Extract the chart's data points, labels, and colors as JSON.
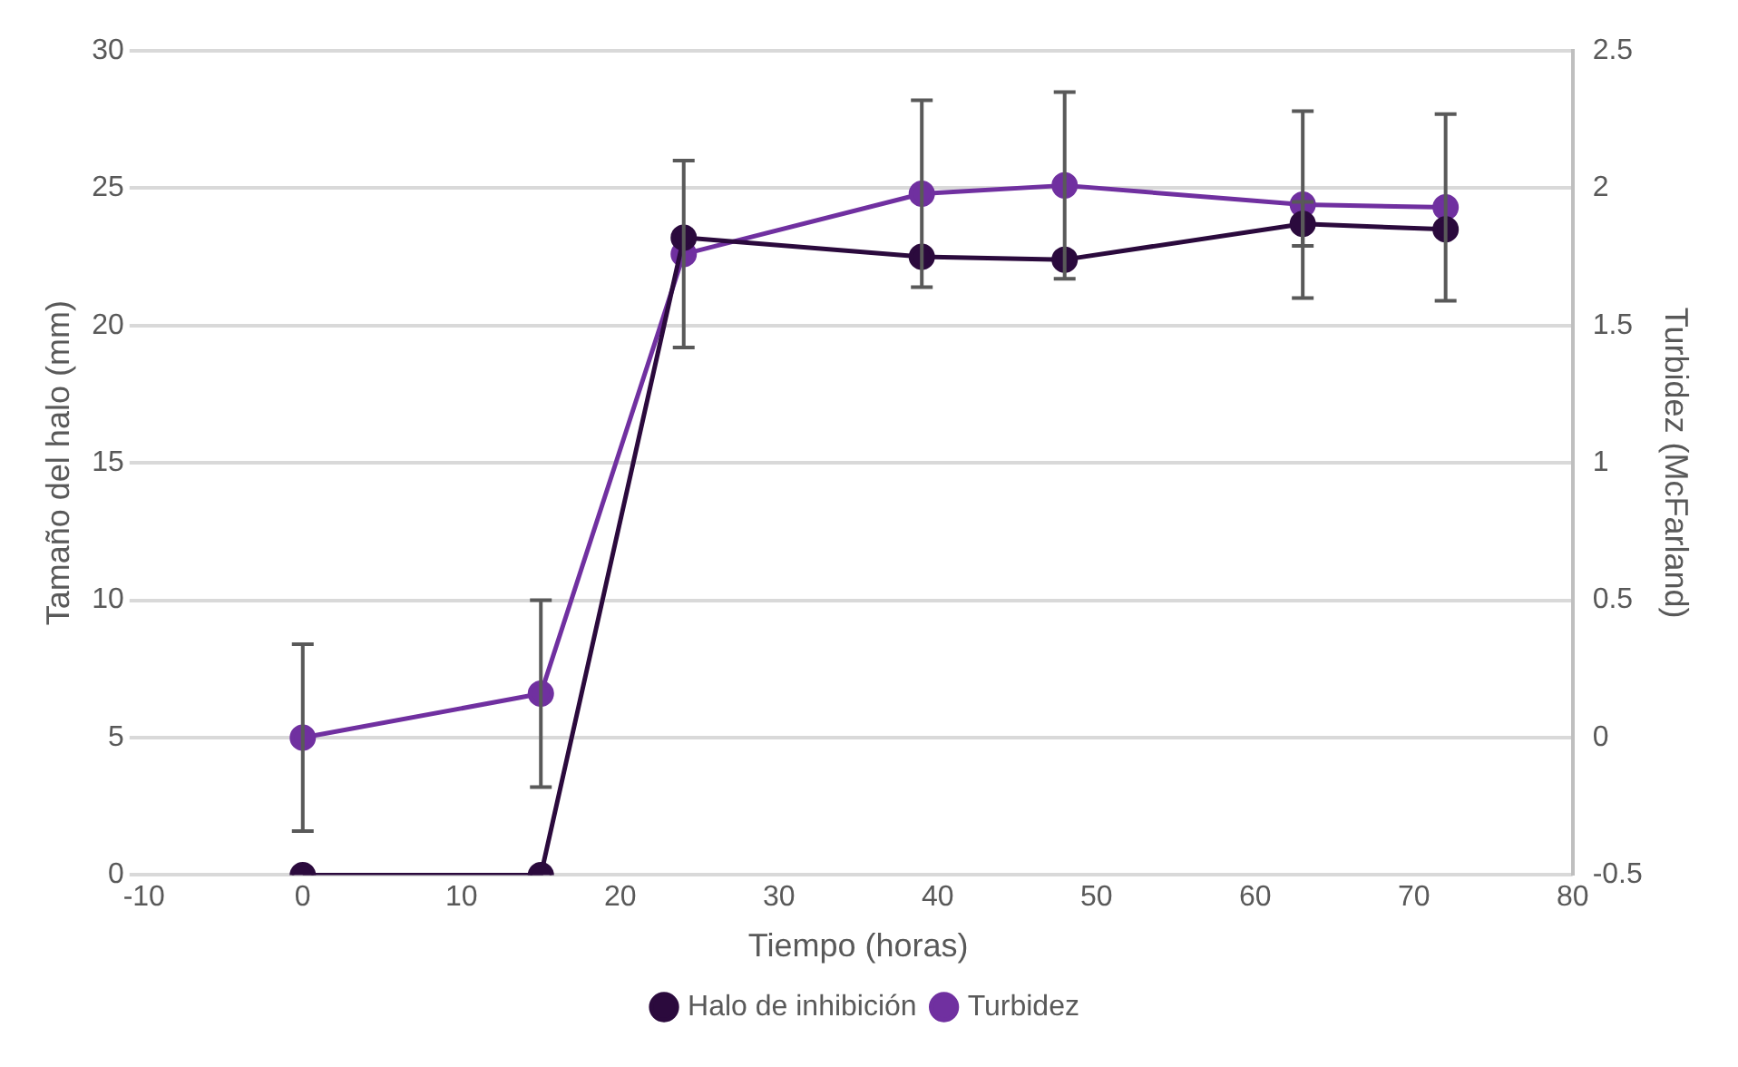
{
  "chart_data": {
    "type": "line",
    "xlabel": "Tiempo (horas)",
    "ylabel": "Tamaño del halo (mm)",
    "y2label": "Turbidez (McFarland)",
    "x": [
      0,
      15,
      24,
      39,
      48,
      63,
      72
    ],
    "series": [
      {
        "name": "Halo de inhibición",
        "color": "#2b0a3d",
        "values": [
          0,
          0,
          23.2,
          22.5,
          22.4,
          23.7,
          23.5
        ],
        "errors": [
          null,
          null,
          null,
          null,
          null,
          0.8,
          null
        ]
      },
      {
        "name": "Turbidez",
        "color": "#7030a0",
        "axis": "y2",
        "values": [
          0,
          0.16,
          1.76,
          1.98,
          2.01,
          1.94,
          1.93
        ],
        "errors": [
          0.34,
          0.34,
          0.34,
          0.34,
          0.34,
          0.34,
          0.34
        ]
      }
    ],
    "xlim": [
      -10,
      80
    ],
    "xticks": [
      -10,
      0,
      10,
      20,
      30,
      40,
      50,
      60,
      70,
      80
    ],
    "ylim": [
      0,
      30
    ],
    "yticks": [
      0,
      5,
      10,
      15,
      20,
      25,
      30
    ],
    "y2lim": [
      -0.5,
      2.5
    ],
    "y2ticks": [
      -0.5,
      0,
      0.5,
      1,
      1.5,
      2,
      2.5
    ],
    "grid": "y",
    "legend": "bottom",
    "marker": "circle",
    "line_style": "solid"
  }
}
